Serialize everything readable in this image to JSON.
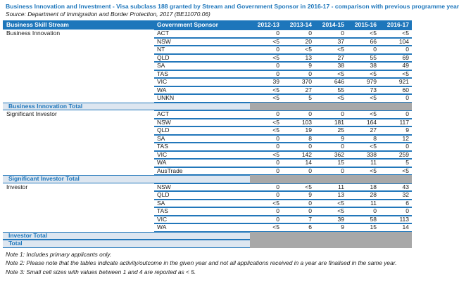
{
  "title": "Business Innovation and Investment - Visa subclass 188 granted by Stream and Government Sponsor in 2016-17 - comparison with previous programme year",
  "source": "Source: Department of Immigration and Border Protection, 2017 (BE11070.06)",
  "colors": {
    "header_bg": "#1d76bb",
    "row_line": "#2277ba",
    "total_row_bg": "#dde6f0",
    "total_row_text": "#1d76bb",
    "suppressed_cell_bg": "#a8a8a8",
    "title_text": "#1d76bb"
  },
  "table": {
    "headers": [
      "Business Skill Stream",
      "Government Sponsor",
      "2012-13",
      "2013-14",
      "2014-15",
      "2015-16",
      "2016-17"
    ],
    "sections": [
      {
        "stream": "Business Innovation",
        "total_label": "Business Innovation Total",
        "rows": [
          {
            "sponsor": "ACT",
            "values": [
              "0",
              "0",
              "0",
              "<5",
              "<5"
            ]
          },
          {
            "sponsor": "NSW",
            "values": [
              "<5",
              "20",
              "37",
              "66",
              "104"
            ]
          },
          {
            "sponsor": "NT",
            "values": [
              "0",
              "<5",
              "<5",
              "0",
              "0"
            ]
          },
          {
            "sponsor": "QLD",
            "values": [
              "<5",
              "13",
              "27",
              "55",
              "69"
            ]
          },
          {
            "sponsor": "SA",
            "values": [
              "0",
              "9",
              "38",
              "38",
              "49"
            ]
          },
          {
            "sponsor": "TAS",
            "values": [
              "0",
              "0",
              "<5",
              "<5",
              "<5"
            ]
          },
          {
            "sponsor": "VIC",
            "values": [
              "39",
              "370",
              "646",
              "979",
              "921"
            ]
          },
          {
            "sponsor": "WA",
            "values": [
              "<5",
              "27",
              "55",
              "73",
              "60"
            ]
          },
          {
            "sponsor": "UNKN",
            "values": [
              "<5",
              "5",
              "<5",
              "<5",
              "0"
            ]
          }
        ]
      },
      {
        "stream": "Significant Investor",
        "total_label": "Significant Investor Total",
        "rows": [
          {
            "sponsor": "ACT",
            "values": [
              "0",
              "0",
              "0",
              "<5",
              "0"
            ]
          },
          {
            "sponsor": "NSW",
            "values": [
              "<5",
              "103",
              "181",
              "164",
              "117"
            ]
          },
          {
            "sponsor": "QLD",
            "values": [
              "<5",
              "19",
              "25",
              "27",
              "9"
            ]
          },
          {
            "sponsor": "SA",
            "values": [
              "0",
              "8",
              "9",
              "8",
              "12"
            ]
          },
          {
            "sponsor": "TAS",
            "values": [
              "0",
              "0",
              "0",
              "<5",
              "0"
            ]
          },
          {
            "sponsor": "VIC",
            "values": [
              "<5",
              "142",
              "362",
              "338",
              "259"
            ]
          },
          {
            "sponsor": "WA",
            "values": [
              "0",
              "14",
              "15",
              "11",
              "5"
            ]
          },
          {
            "sponsor": "AusTrade",
            "values": [
              "0",
              "0",
              "0",
              "<5",
              "<5"
            ]
          }
        ]
      },
      {
        "stream": "Investor",
        "total_label": "Investor Total",
        "rows": [
          {
            "sponsor": "NSW",
            "values": [
              "0",
              "<5",
              "11",
              "18",
              "43"
            ]
          },
          {
            "sponsor": "QLD",
            "values": [
              "0",
              "9",
              "13",
              "28",
              "32"
            ]
          },
          {
            "sponsor": "SA",
            "values": [
              "<5",
              "0",
              "<5",
              "11",
              "6"
            ]
          },
          {
            "sponsor": "TAS",
            "values": [
              "0",
              "0",
              "<5",
              "0",
              "0"
            ]
          },
          {
            "sponsor": "VIC",
            "values": [
              "0",
              "7",
              "39",
              "58",
              "113"
            ]
          },
          {
            "sponsor": "WA",
            "values": [
              "<5",
              "6",
              "9",
              "15",
              "14"
            ]
          }
        ]
      }
    ],
    "grand_total_label": "Total"
  },
  "notes": [
    "Note 1: Includes primary applicants only.",
    "Note 2: Please note that the tables indicate activity/outcome in the given year and not all applications received in a year are finalised in the same year.",
    "Note 3: Small cell sizes with values between 1 and 4 are reported as < 5."
  ]
}
